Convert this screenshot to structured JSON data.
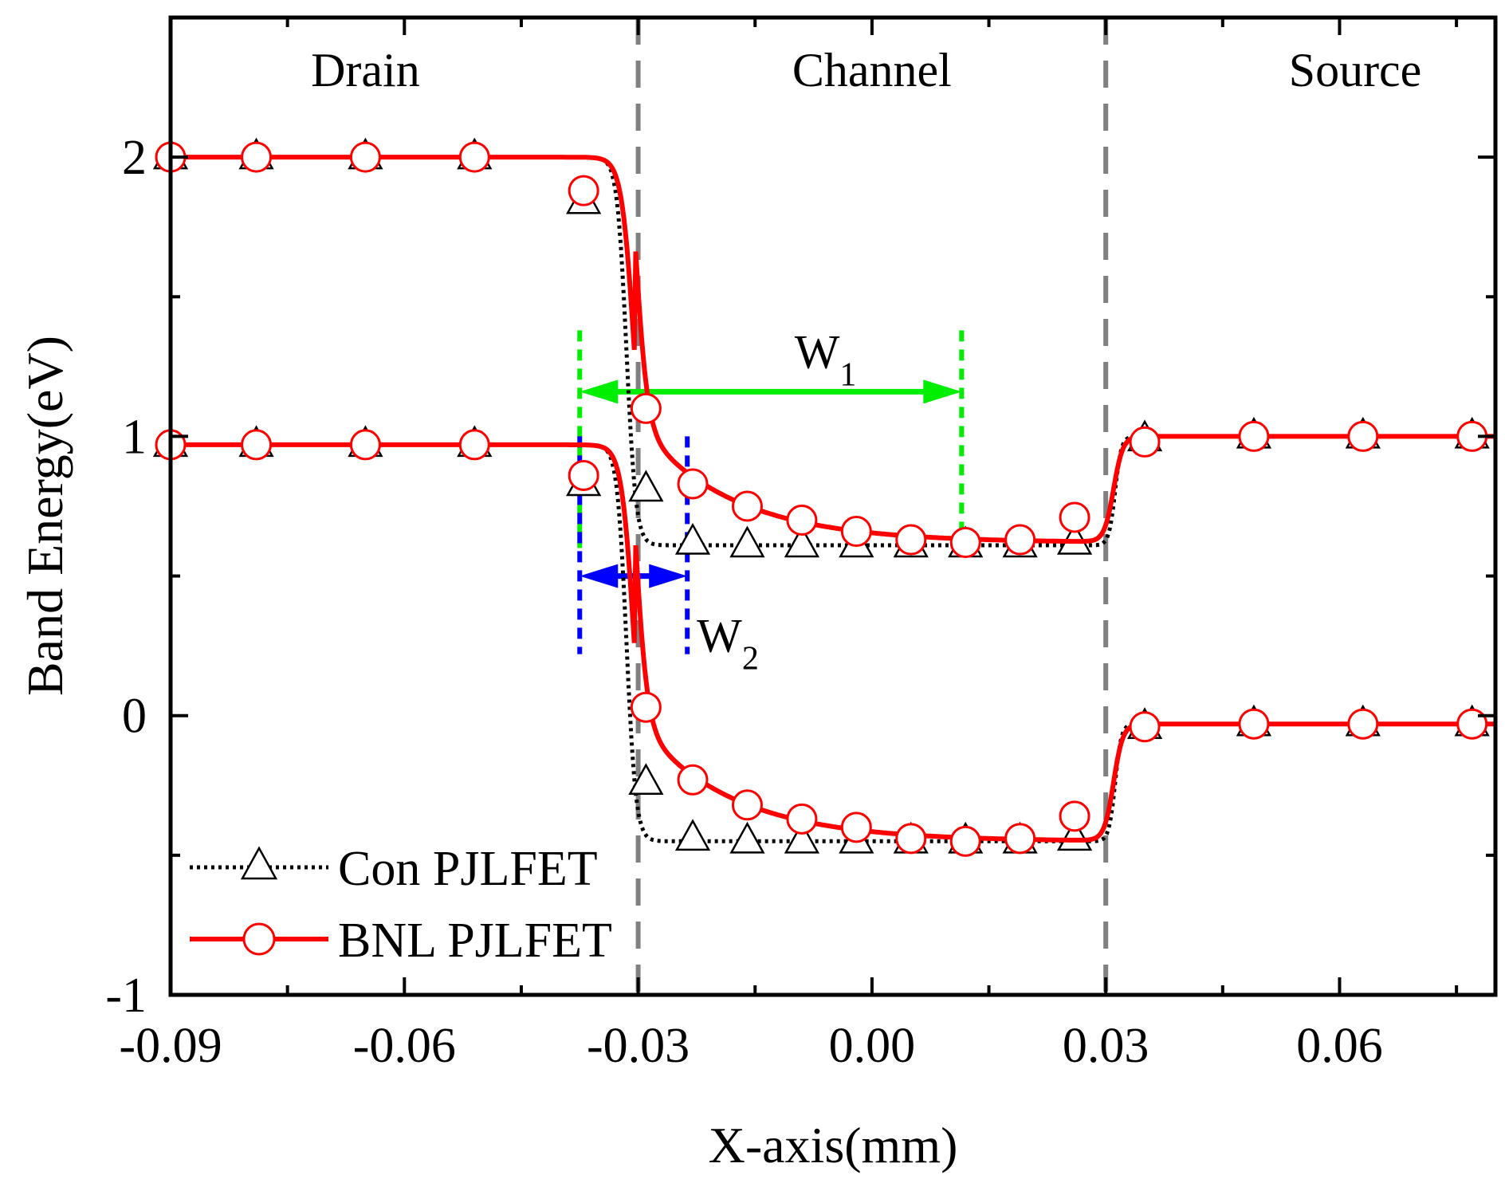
{
  "chart_data": {
    "type": "line",
    "title": "",
    "xlabel": "X-axis(mm)",
    "ylabel": "Band Energy(eV)",
    "xlim": [
      -0.09,
      0.08
    ],
    "ylim": [
      -1,
      2.5
    ],
    "x_ticks": [
      -0.09,
      -0.06,
      -0.03,
      0.0,
      0.03,
      0.06
    ],
    "x_tick_labels": [
      "-0.09",
      "-0.06",
      "-0.03",
      "0.00",
      "0.03",
      "0.06"
    ],
    "y_ticks": [
      -1,
      0,
      1,
      2
    ],
    "y_tick_labels": [
      "-1",
      "0",
      "1",
      "2"
    ],
    "boundaries": [
      -0.03,
      0.03
    ],
    "regions": [
      {
        "label": "Drain",
        "x": -0.065
      },
      {
        "label": "Channel",
        "x": 0.0
      },
      {
        "label": "Source",
        "x": 0.062
      }
    ],
    "series": [
      {
        "name": "Con PJLFET",
        "color": "#000000",
        "line_style": "dotted",
        "marker": "triangle",
        "curves": [
          {
            "band": "conduction",
            "drain": 2.0,
            "channel": 0.61,
            "source": 1.0,
            "junction1_center": -0.0315,
            "junction1_width": 0.0012,
            "junction2_center": 0.0312,
            "junction2_width": 0.0008
          },
          {
            "band": "valence",
            "drain": 0.97,
            "channel": -0.45,
            "source": -0.03,
            "junction1_center": -0.0315,
            "junction1_width": 0.0012,
            "junction2_center": 0.0312,
            "junction2_width": 0.0008
          }
        ],
        "points": [
          {
            "x": -0.09,
            "y": 2.0
          },
          {
            "x": -0.079,
            "y": 2.0
          },
          {
            "x": -0.065,
            "y": 2.0
          },
          {
            "x": -0.051,
            "y": 2.0
          },
          {
            "x": -0.037,
            "y": 1.84
          },
          {
            "x": -0.029,
            "y": 0.81
          },
          {
            "x": -0.023,
            "y": 0.62
          },
          {
            "x": -0.016,
            "y": 0.61
          },
          {
            "x": -0.009,
            "y": 0.61
          },
          {
            "x": -0.002,
            "y": 0.61
          },
          {
            "x": 0.005,
            "y": 0.61
          },
          {
            "x": 0.012,
            "y": 0.61
          },
          {
            "x": 0.019,
            "y": 0.61
          },
          {
            "x": 0.026,
            "y": 0.62
          },
          {
            "x": 0.035,
            "y": 0.99
          },
          {
            "x": 0.049,
            "y": 1.0
          },
          {
            "x": 0.063,
            "y": 1.0
          },
          {
            "x": 0.077,
            "y": 1.0
          },
          {
            "x": -0.09,
            "y": 0.97
          },
          {
            "x": -0.079,
            "y": 0.97
          },
          {
            "x": -0.065,
            "y": 0.97
          },
          {
            "x": -0.051,
            "y": 0.97
          },
          {
            "x": -0.037,
            "y": 0.83
          },
          {
            "x": -0.029,
            "y": -0.24
          },
          {
            "x": -0.023,
            "y": -0.44
          },
          {
            "x": -0.016,
            "y": -0.45
          },
          {
            "x": -0.009,
            "y": -0.45
          },
          {
            "x": -0.002,
            "y": -0.45
          },
          {
            "x": 0.005,
            "y": -0.45
          },
          {
            "x": 0.012,
            "y": -0.45
          },
          {
            "x": 0.019,
            "y": -0.45
          },
          {
            "x": 0.026,
            "y": -0.44
          },
          {
            "x": 0.035,
            "y": -0.04
          },
          {
            "x": 0.049,
            "y": -0.03
          },
          {
            "x": 0.063,
            "y": -0.03
          },
          {
            "x": 0.077,
            "y": -0.03
          }
        ]
      },
      {
        "name": "BNL PJLFET",
        "color": "#ff0000",
        "line_style": "solid",
        "marker": "circle",
        "curves": [
          {
            "band": "conduction",
            "drain": 2.0,
            "channel": 0.62,
            "source": 1.0,
            "junction1_center": -0.0305,
            "junction1_width": 0.0016,
            "junction1_tail": 0.44,
            "junction1_tail_decay": 0.012,
            "junction2_center": 0.031,
            "junction2_width": 0.0012
          },
          {
            "band": "valence",
            "drain": 0.97,
            "channel": -0.45,
            "source": -0.03,
            "junction1_center": -0.0305,
            "junction1_width": 0.0016,
            "junction1_tail": 0.44,
            "junction1_tail_decay": 0.012,
            "junction2_center": 0.031,
            "junction2_width": 0.0012
          }
        ],
        "points": [
          {
            "x": -0.09,
            "y": 2.0
          },
          {
            "x": -0.079,
            "y": 2.0
          },
          {
            "x": -0.065,
            "y": 2.0
          },
          {
            "x": -0.051,
            "y": 2.0
          },
          {
            "x": -0.037,
            "y": 1.88
          },
          {
            "x": -0.029,
            "y": 1.1
          },
          {
            "x": -0.023,
            "y": 0.83
          },
          {
            "x": -0.016,
            "y": 0.75
          },
          {
            "x": -0.009,
            "y": 0.7
          },
          {
            "x": -0.002,
            "y": 0.66
          },
          {
            "x": 0.005,
            "y": 0.63
          },
          {
            "x": 0.012,
            "y": 0.62
          },
          {
            "x": 0.019,
            "y": 0.63
          },
          {
            "x": 0.026,
            "y": 0.71
          },
          {
            "x": 0.035,
            "y": 0.98
          },
          {
            "x": 0.049,
            "y": 1.0
          },
          {
            "x": 0.063,
            "y": 1.0
          },
          {
            "x": 0.077,
            "y": 1.0
          },
          {
            "x": -0.09,
            "y": 0.97
          },
          {
            "x": -0.079,
            "y": 0.97
          },
          {
            "x": -0.065,
            "y": 0.97
          },
          {
            "x": -0.051,
            "y": 0.97
          },
          {
            "x": -0.037,
            "y": 0.86
          },
          {
            "x": -0.029,
            "y": 0.03
          },
          {
            "x": -0.023,
            "y": -0.23
          },
          {
            "x": -0.016,
            "y": -0.32
          },
          {
            "x": -0.009,
            "y": -0.37
          },
          {
            "x": -0.002,
            "y": -0.4
          },
          {
            "x": 0.005,
            "y": -0.44
          },
          {
            "x": 0.012,
            "y": -0.45
          },
          {
            "x": 0.019,
            "y": -0.44
          },
          {
            "x": 0.026,
            "y": -0.36
          },
          {
            "x": 0.035,
            "y": -0.04
          },
          {
            "x": 0.049,
            "y": -0.03
          },
          {
            "x": 0.063,
            "y": -0.03
          },
          {
            "x": 0.077,
            "y": -0.03
          }
        ]
      }
    ],
    "annotations": [
      {
        "name": "W1",
        "main": "W",
        "sub": "1",
        "color": "#00ee00",
        "x_start": -0.0375,
        "x_end": 0.0115,
        "arrow_y": 1.16,
        "guide_y": [
          0.6,
          1.38
        ]
      },
      {
        "name": "W2",
        "main": "W",
        "sub": "2",
        "color": "#0000ff",
        "x_start": -0.0375,
        "x_end": -0.0237,
        "arrow_y": 0.5,
        "guide_y": [
          0.22,
          1.0
        ]
      }
    ],
    "legend": {
      "placement": "bottom-left"
    }
  }
}
